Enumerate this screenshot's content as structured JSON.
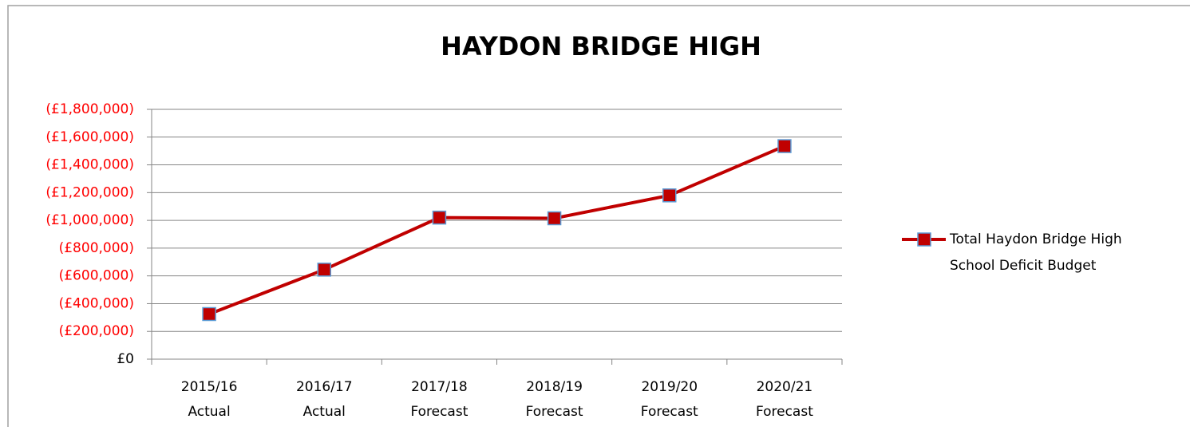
{
  "chart_data": {
    "type": "line",
    "title": "HAYDON BRIDGE HIGH",
    "categories": [
      [
        "2015/16",
        "Actual"
      ],
      [
        "2016/17",
        "Actual"
      ],
      [
        "2017/18",
        "Forecast"
      ],
      [
        "2018/19",
        "Forecast"
      ],
      [
        "2019/20",
        "Forecast"
      ],
      [
        "2020/21",
        "Forecast"
      ]
    ],
    "series": [
      {
        "name": [
          "Total Haydon Bridge High",
          "School Deficit Budget"
        ],
        "color": "#c00000",
        "marker_edge": "#5b9bd5",
        "values": [
          -325000,
          -645000,
          -1020000,
          -1015000,
          -1180000,
          -1535000
        ]
      }
    ],
    "ylim": [
      0,
      -1800000
    ],
    "yticks": [
      {
        "value": 0,
        "label": "£0"
      },
      {
        "value": -200000,
        "label": "(£200,000)"
      },
      {
        "value": -400000,
        "label": "(£400,000)"
      },
      {
        "value": -600000,
        "label": "(£600,000)"
      },
      {
        "value": -800000,
        "label": "(£800,000)"
      },
      {
        "value": -1000000,
        "label": "(£1,000,000)"
      },
      {
        "value": -1200000,
        "label": "(£1,200,000)"
      },
      {
        "value": -1400000,
        "label": "(£1,400,000)"
      },
      {
        "value": -1600000,
        "label": "(£1,600,000)"
      },
      {
        "value": -1800000,
        "label": "(£1,800,000)"
      }
    ],
    "negative_tick_color": "#ff0000",
    "grid": true,
    "legend": "right"
  }
}
